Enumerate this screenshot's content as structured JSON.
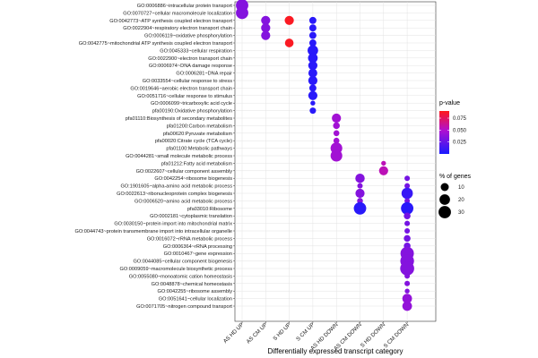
{
  "chart_data": {
    "type": "scatter",
    "subtype": "bubble",
    "xlabel": "Differentially expressed transcript category",
    "ylabel": "",
    "categories": [
      "AS HD UP",
      "AS CM UP",
      "S HD UP",
      "S CM UP",
      "AS HD DOWN",
      "AS CM DOWN",
      "S HD DOWN",
      "S CM DOWN"
    ],
    "terms": [
      "GO:0006886~intracellular protein transport",
      "GO:0070727~cellular macromolecule localization",
      "GO:0042773~ATP synthesis coupled electron transport",
      "GO:0022904~respiratory electron transport chain",
      "GO:0006119~oxidative phosphorylation",
      "GO:0042775~mitochondrial ATP synthesis coupled electron transport",
      "GO:0045333~cellular respiration",
      "GO:0022900~electron transport chain",
      "GO:0006974~DNA damage response",
      "GO:0006281~DNA repair",
      "GO:0033554~cellular response to stress",
      "GO:0019646~aerobic electron transport chain",
      "GO:0051716~cellular response to stimulus",
      "GO:0006099~tricarboxylic acid cycle",
      "pfa00190:Oxidative phosphorylation",
      "pfa01110:Biosynthesis of secondary metabolites",
      "pfa01200:Carbon metabolism",
      "pfa00620:Pyruvate metabolism",
      "pfa00020:Citrate cycle (TCA cycle)",
      "pfa01100:Metabolic pathways",
      "GO:0044281~small molecule metabolic process",
      "pfa01212:Fatty acid metabolism",
      "GO:0022607~cellular component assembly",
      "GO:0042254~ribosome biogenesis",
      "GO:1901605~alpha-amino acid metabolic process",
      "GO:0022613~ribonucleoprotein complex biogenesis",
      "GO:0006520~amino acid metabolic process",
      "pfa03010:Ribosome",
      "GO:0002181~cytoplasmic translation",
      "GO:0030150~protein import into mitochondrial matrix",
      "GO:0044743~protein transmembrane import into intracellular organelle",
      "GO:0016072~rRNA metabolic process",
      "GO:0006364~rRNA processing",
      "GO:0010467~gene expression",
      "GO:0044085~cellular component biogenesis",
      "GO:0009059~macromolecule biosynthetic process",
      "GO:0055080~monoatomic cation homeostasis",
      "GO:0048878~chemical homeostasis",
      "GO:0042255~ribosome assembly",
      "GO:0051641~cellular localization",
      "GO:0071705~nitrogen compound transport"
    ],
    "points": [
      {
        "term": 0,
        "category": 0,
        "pct": 30,
        "p": 0.035
      },
      {
        "term": 1,
        "category": 0,
        "pct": 30,
        "p": 0.035
      },
      {
        "term": 2,
        "category": 1,
        "pct": 14,
        "p": 0.035
      },
      {
        "term": 3,
        "category": 1,
        "pct": 14,
        "p": 0.035
      },
      {
        "term": 4,
        "category": 1,
        "pct": 14,
        "p": 0.035
      },
      {
        "term": 2,
        "category": 2,
        "pct": 14,
        "p": 0.088
      },
      {
        "term": 5,
        "category": 2,
        "pct": 12,
        "p": 0.088
      },
      {
        "term": 2,
        "category": 3,
        "pct": 7,
        "p": 0.005
      },
      {
        "term": 3,
        "category": 3,
        "pct": 7,
        "p": 0.005
      },
      {
        "term": 4,
        "category": 3,
        "pct": 7,
        "p": 0.005
      },
      {
        "term": 5,
        "category": 3,
        "pct": 7,
        "p": 0.005
      },
      {
        "term": 6,
        "category": 3,
        "pct": 20,
        "p": 0.005
      },
      {
        "term": 7,
        "category": 3,
        "pct": 16,
        "p": 0.005
      },
      {
        "term": 8,
        "category": 3,
        "pct": 14,
        "p": 0.005
      },
      {
        "term": 9,
        "category": 3,
        "pct": 13,
        "p": 0.005
      },
      {
        "term": 10,
        "category": 3,
        "pct": 14,
        "p": 0.005
      },
      {
        "term": 11,
        "category": 3,
        "pct": 7,
        "p": 0.005
      },
      {
        "term": 12,
        "category": 3,
        "pct": 14,
        "p": 0.005
      },
      {
        "term": 13,
        "category": 3,
        "pct": 2,
        "p": 0.005
      },
      {
        "term": 14,
        "category": 3,
        "pct": 5,
        "p": 0.005
      },
      {
        "term": 15,
        "category": 4,
        "pct": 14,
        "p": 0.045
      },
      {
        "term": 16,
        "category": 4,
        "pct": 6,
        "p": 0.045
      },
      {
        "term": 17,
        "category": 4,
        "pct": 4,
        "p": 0.045
      },
      {
        "term": 18,
        "category": 4,
        "pct": 4,
        "p": 0.045
      },
      {
        "term": 19,
        "category": 4,
        "pct": 26,
        "p": 0.045
      },
      {
        "term": 20,
        "category": 4,
        "pct": 26,
        "p": 0.045
      },
      {
        "term": 23,
        "category": 5,
        "pct": 15,
        "p": 0.035
      },
      {
        "term": 24,
        "category": 5,
        "pct": 3,
        "p": 0.035
      },
      {
        "term": 25,
        "category": 5,
        "pct": 14,
        "p": 0.035
      },
      {
        "term": 26,
        "category": 5,
        "pct": 4,
        "p": 0.035
      },
      {
        "term": 27,
        "category": 5,
        "pct": 30,
        "p": 0.005
      },
      {
        "term": 21,
        "category": 6,
        "pct": 2,
        "p": 0.055
      },
      {
        "term": 22,
        "category": 6,
        "pct": 14,
        "p": 0.055
      },
      {
        "term": 23,
        "category": 7,
        "pct": 3,
        "p": 0.03
      },
      {
        "term": 24,
        "category": 7,
        "pct": 3,
        "p": 0.03
      },
      {
        "term": 25,
        "category": 7,
        "pct": 24,
        "p": 0.01
      },
      {
        "term": 26,
        "category": 7,
        "pct": 3,
        "p": 0.03
      },
      {
        "term": 27,
        "category": 7,
        "pct": 30,
        "p": 0.005
      },
      {
        "term": 28,
        "category": 7,
        "pct": 6,
        "p": 0.03
      },
      {
        "term": 29,
        "category": 7,
        "pct": 3,
        "p": 0.03
      },
      {
        "term": 30,
        "category": 7,
        "pct": 3,
        "p": 0.03
      },
      {
        "term": 31,
        "category": 7,
        "pct": 6,
        "p": 0.03
      },
      {
        "term": 32,
        "category": 7,
        "pct": 6,
        "p": 0.03
      },
      {
        "term": 33,
        "category": 7,
        "pct": 36,
        "p": 0.035
      },
      {
        "term": 34,
        "category": 7,
        "pct": 38,
        "p": 0.035
      },
      {
        "term": 35,
        "category": 7,
        "pct": 40,
        "p": 0.035
      },
      {
        "term": 36,
        "category": 7,
        "pct": 3,
        "p": 0.035
      },
      {
        "term": 37,
        "category": 7,
        "pct": 3,
        "p": 0.035
      },
      {
        "term": 38,
        "category": 7,
        "pct": 2,
        "p": 0.035
      },
      {
        "term": 39,
        "category": 7,
        "pct": 16,
        "p": 0.04
      },
      {
        "term": 40,
        "category": 7,
        "pct": 16,
        "p": 0.04
      }
    ],
    "color_legend": {
      "title": "p-value",
      "ticks": [
        0.075,
        0.05,
        0.025
      ],
      "tick_labels": [
        "0.075",
        "0.050",
        "0.025"
      ],
      "range": [
        0.0,
        0.09
      ],
      "low_color": "#1a1aff",
      "mid_color": "#b010d0",
      "high_color": "#ff1a1a"
    },
    "size_legend": {
      "title": "% of genes",
      "ticks": [
        10,
        20,
        30
      ],
      "tick_labels": [
        "10",
        "20",
        "30"
      ]
    },
    "grid": true,
    "legend_position": "right"
  }
}
